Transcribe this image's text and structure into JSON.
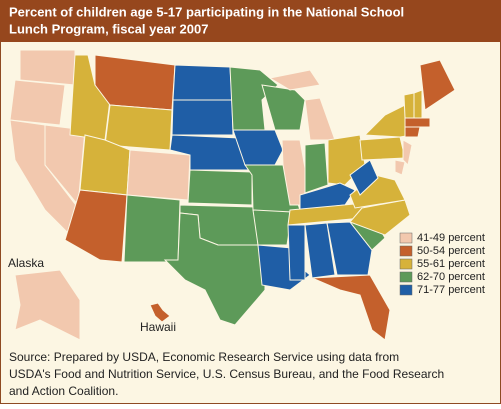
{
  "header": {
    "title_lines": [
      "Percent of children age 5-17 participating in the National School",
      "Lunch Program, fiscal year 2007"
    ]
  },
  "map": {
    "labels": {
      "alaska": "Alaska",
      "hawaii": "Hawaii"
    }
  },
  "legend": {
    "items": [
      {
        "label": "41-49 percent",
        "color": "#f2c8ae"
      },
      {
        "label": "50-54 percent",
        "color": "#c4602c"
      },
      {
        "label": "55-61 percent",
        "color": "#d6b23a"
      },
      {
        "label": "62-70 percent",
        "color": "#5d9a59"
      },
      {
        "label": "71-77 percent",
        "color": "#1f5ea6"
      }
    ]
  },
  "source": {
    "lines": [
      "Source: Prepared by USDA, Economic Research Service using data from",
      "USDA's Food and Nutrition Service, U.S. Census Bureau, and the Food Research",
      "and Action Coalition."
    ]
  }
}
